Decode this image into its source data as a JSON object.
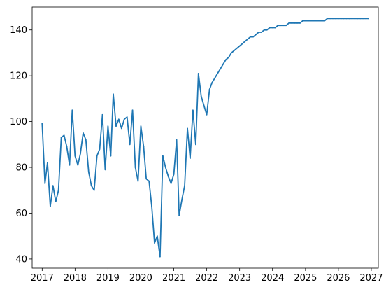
{
  "chart_data": {
    "type": "line",
    "title": "",
    "xlabel": "",
    "ylabel": "",
    "x_axis": {
      "kind": "date",
      "range": [
        "2016-09-12",
        "2027-03-20"
      ],
      "ticks": [
        {
          "value": "2017-01-01",
          "label": "2017"
        },
        {
          "value": "2018-01-01",
          "label": "2018"
        },
        {
          "value": "2019-01-01",
          "label": "2019"
        },
        {
          "value": "2020-01-01",
          "label": "2020"
        },
        {
          "value": "2021-01-01",
          "label": "2021"
        },
        {
          "value": "2022-01-01",
          "label": "2022"
        },
        {
          "value": "2023-01-01",
          "label": "2023"
        },
        {
          "value": "2024-01-01",
          "label": "2024"
        },
        {
          "value": "2025-01-01",
          "label": "2025"
        },
        {
          "value": "2026-01-01",
          "label": "2026"
        },
        {
          "value": "2027-01-01",
          "label": "2027"
        }
      ]
    },
    "y_axis": {
      "range": [
        36,
        150
      ],
      "ticks": [
        {
          "value": 40,
          "label": "40"
        },
        {
          "value": 60,
          "label": "60"
        },
        {
          "value": 80,
          "label": "80"
        },
        {
          "value": 100,
          "label": "100"
        },
        {
          "value": 120,
          "label": "120"
        },
        {
          "value": 140,
          "label": "140"
        }
      ]
    },
    "grid": false,
    "legend": "none",
    "series": [
      {
        "color": "#1f77b4",
        "x": [
          "2017-01-01",
          "2017-02-01",
          "2017-03-01",
          "2017-04-01",
          "2017-05-01",
          "2017-06-01",
          "2017-07-01",
          "2017-08-01",
          "2017-09-01",
          "2017-10-01",
          "2017-11-01",
          "2017-12-01",
          "2018-01-01",
          "2018-02-01",
          "2018-03-01",
          "2018-04-01",
          "2018-05-01",
          "2018-06-01",
          "2018-07-01",
          "2018-08-01",
          "2018-09-01",
          "2018-10-01",
          "2018-11-01",
          "2018-12-01",
          "2019-01-01",
          "2019-02-01",
          "2019-03-01",
          "2019-04-01",
          "2019-05-01",
          "2019-06-01",
          "2019-07-01",
          "2019-08-01",
          "2019-09-01",
          "2019-10-01",
          "2019-11-01",
          "2019-12-01",
          "2020-01-01",
          "2020-02-01",
          "2020-03-01",
          "2020-04-01",
          "2020-05-01",
          "2020-06-01",
          "2020-07-01",
          "2020-08-01",
          "2020-09-01",
          "2020-10-01",
          "2020-11-01",
          "2020-12-01",
          "2021-01-01",
          "2021-02-01",
          "2021-03-01",
          "2021-04-01",
          "2021-05-01",
          "2021-06-01",
          "2021-07-01",
          "2021-08-01",
          "2021-09-01",
          "2021-10-01",
          "2021-11-01",
          "2021-12-01",
          "2022-01-01",
          "2022-02-01",
          "2022-03-01",
          "2022-04-01",
          "2022-05-01",
          "2022-06-01",
          "2022-07-01",
          "2022-08-01",
          "2022-09-01",
          "2022-10-01",
          "2022-11-01",
          "2022-12-01",
          "2023-01-01",
          "2023-02-01",
          "2023-03-01",
          "2023-04-01",
          "2023-05-01",
          "2023-06-01",
          "2023-07-01",
          "2023-08-01",
          "2023-09-01",
          "2023-10-01",
          "2023-11-01",
          "2023-12-01",
          "2024-01-01",
          "2024-02-01",
          "2024-03-01",
          "2024-04-01",
          "2024-05-01",
          "2024-06-01",
          "2024-07-01",
          "2024-08-01",
          "2024-09-01",
          "2024-10-01",
          "2024-11-01",
          "2024-12-01",
          "2025-01-01",
          "2025-02-01",
          "2025-03-01",
          "2025-04-01",
          "2025-05-01",
          "2025-06-01",
          "2025-07-01",
          "2025-08-01",
          "2025-09-01",
          "2025-10-01",
          "2025-11-01",
          "2025-12-01",
          "2026-01-01",
          "2026-02-01",
          "2026-03-01",
          "2026-04-01",
          "2026-05-01",
          "2026-06-01",
          "2026-07-01",
          "2026-08-01",
          "2026-09-01",
          "2026-10-01",
          "2026-11-01",
          "2026-12-01"
        ],
        "y": [
          99,
          73,
          82,
          63,
          72,
          65,
          70,
          93,
          94,
          89,
          81,
          105,
          85,
          81,
          86,
          95,
          92,
          78,
          72,
          70,
          85,
          88,
          103,
          79,
          98,
          85,
          112,
          98,
          101,
          97,
          101,
          102,
          90,
          105,
          80,
          74,
          98,
          89,
          75,
          74,
          63,
          47,
          50,
          41,
          85,
          80,
          76,
          73,
          77,
          92,
          59,
          66,
          72,
          97,
          84,
          105,
          90,
          121,
          111,
          107,
          103,
          114,
          117,
          119,
          121,
          123,
          125,
          127,
          128,
          130,
          131,
          132,
          133,
          134,
          135,
          136,
          137,
          137,
          138,
          139,
          139,
          140,
          140,
          141,
          141,
          141,
          142,
          142,
          142,
          142,
          143,
          143,
          143,
          143,
          143,
          144,
          144,
          144,
          144,
          144,
          144,
          144,
          144,
          144,
          145,
          145,
          145,
          145,
          145,
          145,
          145,
          145,
          145,
          145,
          145,
          145,
          145,
          145,
          145,
          145
        ]
      }
    ]
  }
}
